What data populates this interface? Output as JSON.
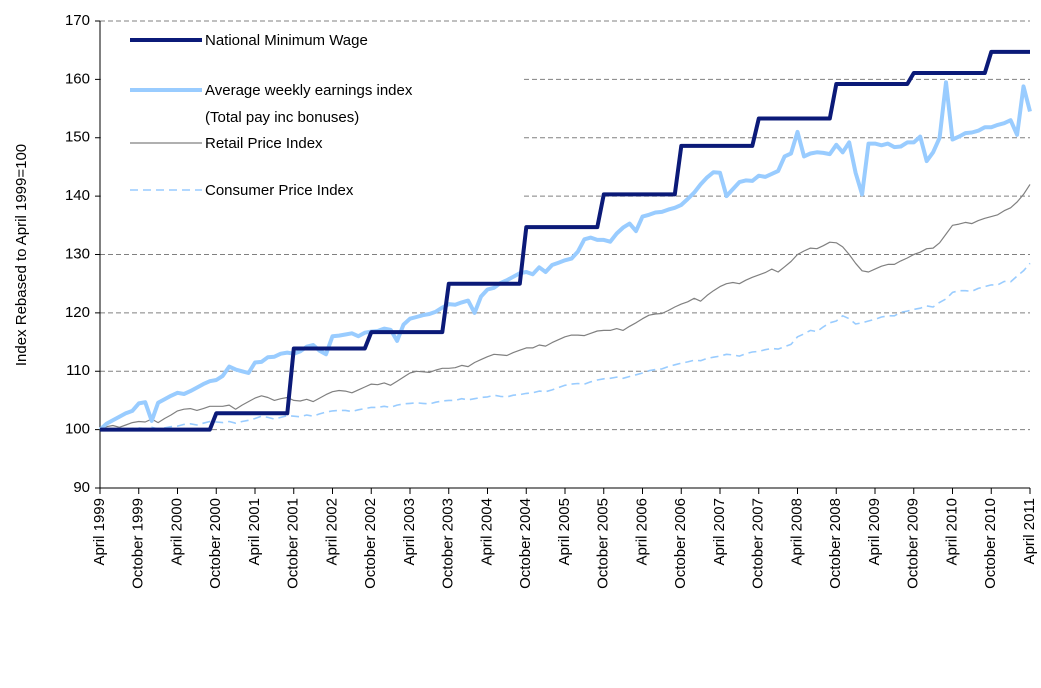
{
  "chart_data": {
    "type": "line",
    "y_label": "Index Rebased to April 1999=100",
    "categories": [
      "April 1999",
      null,
      null,
      null,
      null,
      null,
      "October 1999",
      null,
      null,
      null,
      null,
      null,
      "April 2000",
      null,
      null,
      null,
      null,
      null,
      "October 2000",
      null,
      null,
      null,
      null,
      null,
      "April 2001",
      null,
      null,
      null,
      null,
      null,
      "October 2001",
      null,
      null,
      null,
      null,
      null,
      "April 2002",
      null,
      null,
      null,
      null,
      null,
      "October 2002",
      null,
      null,
      null,
      null,
      null,
      "April 2003",
      null,
      null,
      null,
      null,
      null,
      "October 2003",
      null,
      null,
      null,
      null,
      null,
      "April 2004",
      null,
      null,
      null,
      null,
      null,
      "October 2004",
      null,
      null,
      null,
      null,
      null,
      "April 2005",
      null,
      null,
      null,
      null,
      null,
      "October 2005",
      null,
      null,
      null,
      null,
      null,
      "April 2006",
      null,
      null,
      null,
      null,
      null,
      "October 2006",
      null,
      null,
      null,
      null,
      null,
      "April 2007",
      null,
      null,
      null,
      null,
      null,
      "October 2007",
      null,
      null,
      null,
      null,
      null,
      "April 2008",
      null,
      null,
      null,
      null,
      null,
      "October 2008",
      null,
      null,
      null,
      null,
      null,
      "April 2009",
      null,
      null,
      null,
      null,
      null,
      "October 2009",
      null,
      null,
      null,
      null,
      null,
      "April 2010",
      null,
      null,
      null,
      null,
      null,
      "October 2010",
      null,
      null,
      null,
      null,
      null,
      "April 2011"
    ],
    "series": [
      {
        "name": "National Minimum Wage",
        "color": "#0b1a78",
        "width": 4,
        "dash": false,
        "values": [
          100,
          100,
          100,
          100,
          100,
          100,
          100,
          100,
          100,
          100,
          100,
          100,
          100,
          100,
          100,
          100,
          100,
          100,
          102.8,
          102.8,
          102.8,
          102.8,
          102.8,
          102.8,
          102.8,
          102.8,
          102.8,
          102.8,
          102.8,
          102.8,
          113.9,
          113.9,
          113.9,
          113.9,
          113.9,
          113.9,
          113.9,
          113.9,
          113.9,
          113.9,
          113.9,
          113.9,
          116.7,
          116.7,
          116.7,
          116.7,
          116.7,
          116.7,
          116.7,
          116.7,
          116.7,
          116.7,
          116.7,
          116.7,
          125,
          125,
          125,
          125,
          125,
          125,
          125,
          125,
          125,
          125,
          125,
          125,
          134.7,
          134.7,
          134.7,
          134.7,
          134.7,
          134.7,
          134.7,
          134.7,
          134.7,
          134.7,
          134.7,
          134.7,
          140.3,
          140.3,
          140.3,
          140.3,
          140.3,
          140.3,
          140.3,
          140.3,
          140.3,
          140.3,
          140.3,
          140.3,
          148.6,
          148.6,
          148.6,
          148.6,
          148.6,
          148.6,
          148.6,
          148.6,
          148.6,
          148.6,
          148.6,
          148.6,
          153.3,
          153.3,
          153.3,
          153.3,
          153.3,
          153.3,
          153.3,
          153.3,
          153.3,
          153.3,
          153.3,
          153.3,
          159.2,
          159.2,
          159.2,
          159.2,
          159.2,
          159.2,
          159.2,
          159.2,
          159.2,
          159.2,
          159.2,
          159.2,
          161.1,
          161.1,
          161.1,
          161.1,
          161.1,
          161.1,
          161.1,
          161.1,
          161.1,
          161.1,
          161.1,
          161.1,
          164.7,
          164.7,
          164.7,
          164.7,
          164.7,
          164.7,
          164.7
        ]
      },
      {
        "name": "Average weekly earnings index\n(Total pay inc bonuses)",
        "color": "#99ccff",
        "width": 4,
        "dash": false,
        "values": [
          100,
          101,
          101.6,
          102.2,
          102.8,
          103.2,
          104.5,
          104.7,
          101.5,
          104.6,
          105.2,
          105.8,
          106.3,
          106.1,
          106.6,
          107.2,
          107.8,
          108.3,
          108.5,
          109.2,
          110.8,
          110.3,
          110,
          109.7,
          111.5,
          111.6,
          112.4,
          112.5,
          113,
          113.2,
          113,
          113.4,
          114.2,
          114.5,
          113.5,
          112.9,
          116,
          116.1,
          116.3,
          116.5,
          116,
          116.6,
          116.8,
          116.9,
          117.3,
          117.1,
          115.2,
          118,
          119,
          119.3,
          119.6,
          119.8,
          120.2,
          120.9,
          121.5,
          121.4,
          121.8,
          122.1,
          120,
          122.8,
          124,
          124.3,
          125.1,
          125.6,
          126.2,
          126.8,
          127,
          126.6,
          127.8,
          127,
          128.2,
          128.6,
          129,
          129.3,
          130.5,
          132.6,
          132.9,
          132.5,
          132.5,
          132.2,
          133.6,
          134.6,
          135.3,
          134,
          136.5,
          136.8,
          137.2,
          137.3,
          137.7,
          138,
          138.5,
          139.5,
          140.6,
          142,
          143.2,
          144.1,
          144,
          140,
          141.2,
          142.4,
          142.7,
          142.6,
          143.5,
          143.3,
          143.8,
          144.3,
          146.8,
          147.3,
          151,
          146.8,
          147.3,
          147.5,
          147.4,
          147.2,
          148.8,
          147.5,
          149.2,
          144,
          140.3,
          149,
          149,
          148.7,
          149,
          148.4,
          148.5,
          149.2,
          149.2,
          150.2,
          146,
          147.5,
          150,
          159.5,
          149.7,
          150.2,
          150.8,
          150.9,
          151.2,
          151.8,
          151.8,
          152.2,
          152.5,
          153,
          150.5,
          158.8,
          154.5
        ]
      },
      {
        "name": "Retail Price Index",
        "color": "#808080",
        "width": 1.2,
        "dash": false,
        "values": [
          100,
          100.5,
          100.7,
          100.4,
          100.8,
          101.2,
          101.4,
          101.3,
          101.8,
          101.2,
          101.9,
          102.5,
          103.2,
          103.5,
          103.6,
          103.3,
          103.6,
          104,
          104,
          104,
          104.2,
          103.5,
          104.2,
          104.8,
          105.4,
          105.8,
          105.5,
          105,
          105.3,
          105.5,
          105,
          104.9,
          105.2,
          104.8,
          105.4,
          106,
          106.5,
          106.7,
          106.6,
          106.3,
          106.8,
          107.3,
          107.8,
          107.7,
          108,
          107.6,
          108.3,
          109,
          109.7,
          110,
          109.9,
          109.8,
          110.2,
          110.5,
          110.5,
          110.6,
          111,
          110.8,
          111.5,
          112,
          112.5,
          112.9,
          112.8,
          112.7,
          113.2,
          113.6,
          114,
          114,
          114.5,
          114.3,
          114.9,
          115.4,
          115.9,
          116.2,
          116.2,
          116.1,
          116.5,
          116.9,
          117,
          117,
          117.3,
          117,
          117.7,
          118.3,
          119,
          119.6,
          119.8,
          119.9,
          120.4,
          121,
          121.5,
          121.9,
          122.5,
          122,
          123,
          123.8,
          124.5,
          125,
          125.2,
          125,
          125.6,
          126.1,
          126.5,
          126.9,
          127.5,
          127,
          127.9,
          128.8,
          130,
          130.6,
          131.1,
          131,
          131.5,
          132.1,
          132,
          131.3,
          130,
          128.5,
          127.2,
          127,
          127.5,
          128,
          128.3,
          128.3,
          128.9,
          129.4,
          130,
          130.4,
          131,
          131.1,
          132,
          133.5,
          135,
          135.2,
          135.5,
          135.3,
          135.8,
          136.2,
          136.5,
          136.8,
          137.5,
          138,
          139,
          140.3,
          142
        ]
      },
      {
        "name": "Consumer Price Index",
        "color": "#99ccff",
        "width": 1.6,
        "dash": true,
        "values": [
          100,
          100.2,
          100.1,
          99.9,
          100,
          100.2,
          100.3,
          100.2,
          100.4,
          100.1,
          100.3,
          100.5,
          100.6,
          100.9,
          101,
          100.8,
          101.1,
          101.4,
          101.3,
          101.2,
          101.4,
          101.1,
          101.4,
          101.6,
          101.9,
          102.3,
          102.1,
          101.8,
          102.1,
          102.4,
          102.3,
          102.2,
          102.5,
          102.3,
          102.7,
          103,
          103.2,
          103.3,
          103.3,
          103.1,
          103.4,
          103.6,
          103.8,
          103.8,
          104,
          103.8,
          104.2,
          104.4,
          104.5,
          104.6,
          104.5,
          104.4,
          104.7,
          104.9,
          105,
          105,
          105.3,
          105.1,
          105.3,
          105.5,
          105.6,
          105.9,
          105.7,
          105.6,
          105.9,
          106,
          106.2,
          106.3,
          106.6,
          106.5,
          106.8,
          107.2,
          107.6,
          107.8,
          107.9,
          107.8,
          108.2,
          108.5,
          108.7,
          108.8,
          109,
          108.8,
          109.1,
          109.4,
          109.7,
          110.1,
          110.3,
          110.4,
          110.8,
          111.1,
          111.4,
          111.6,
          111.9,
          111.8,
          112.2,
          112.4,
          112.6,
          112.9,
          112.8,
          112.6,
          113,
          113.3,
          113.4,
          113.7,
          113.9,
          113.8,
          114.2,
          114.6,
          115.9,
          116.4,
          117,
          116.8,
          117.6,
          118.3,
          118.6,
          119.5,
          119,
          118.1,
          118.3,
          118.6,
          118.9,
          119.3,
          119.5,
          119.5,
          120.1,
          120.3,
          120.6,
          120.8,
          121.2,
          121,
          121.8,
          122.4,
          123.5,
          123.8,
          123.8,
          123.7,
          124.2,
          124.5,
          124.8,
          124.8,
          125.4,
          125.3,
          126.3,
          127.2,
          128.5
        ]
      }
    ],
    "ylim": [
      90,
      170
    ],
    "yticks": [
      90,
      100,
      110,
      120,
      130,
      140,
      150,
      160,
      170
    ],
    "grid": true,
    "legend": "upper left"
  }
}
